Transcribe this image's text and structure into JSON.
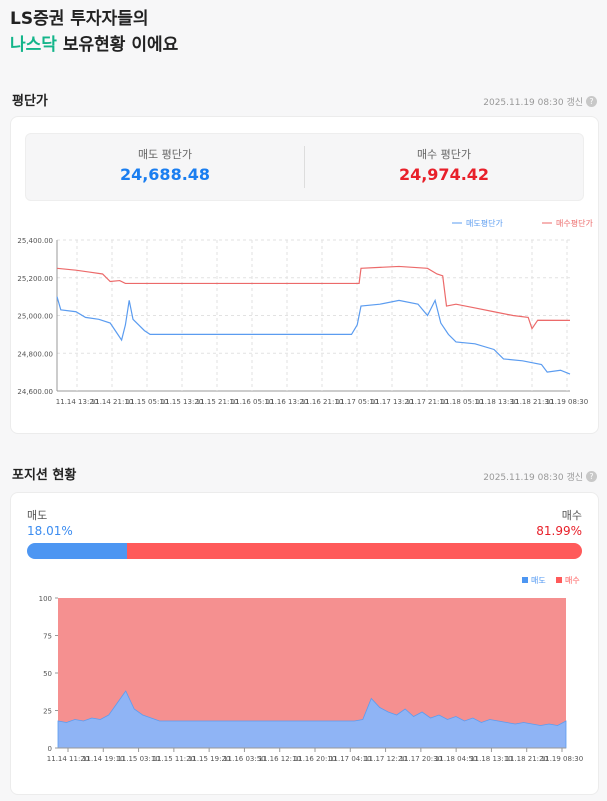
{
  "hero": {
    "line1": "LS증권 투자자들의",
    "line2_accent": "나스닥",
    "line2_rest": " 보유현황 이에요"
  },
  "avg_section": {
    "title": "평단가",
    "updated": "2025.11.19 08:30 갱신",
    "help_icon": "question-icon",
    "sell_label": "매도 평단가",
    "sell_value": "24,688.48",
    "buy_label": "매수 평단가",
    "buy_value": "24,974.42"
  },
  "position_section": {
    "title": "포지션 현황",
    "updated": "2025.11.19 08:30 갱신",
    "help_icon": "question-icon",
    "sell_label": "매도",
    "sell_pct": "18.01%",
    "buy_label": "매수",
    "buy_pct": "81.99%",
    "sell_fraction": 18.01
  },
  "colors": {
    "sell": "#3b8cf0",
    "buy": "#e8202a",
    "sell_area": "#8fb4f5",
    "buy_area": "#f59090",
    "accent": "#13b58a"
  },
  "chart_data": [
    {
      "type": "line",
      "legend": [
        "매도평단가",
        "매수평단가"
      ],
      "legend_position": "top-right",
      "grid": true,
      "ylim": [
        24600,
        25400
      ],
      "yticks": [
        "25,400.00",
        "25,200.00",
        "25,000.00",
        "24,800.00",
        "24,600.00"
      ],
      "xticks": [
        "11.14 13:20",
        "11.14 21:10",
        "11.15 05:10",
        "11.15 13:20",
        "11.15 21:10",
        "11.16 05:10",
        "11.16 13:20",
        "11.16 21:10",
        "11.17 05:10",
        "11.17 13:20",
        "11.17 21:10",
        "11.18 05:10",
        "11.18 13:30",
        "11.18 21:30",
        "11.19 08:30"
      ],
      "series": [
        {
          "name": "매도평단가",
          "color": "#5b9cf0",
          "points": [
            [
              0,
              25100
            ],
            [
              0.2,
              25030
            ],
            [
              1,
              25020
            ],
            [
              1.5,
              24990
            ],
            [
              2.2,
              24980
            ],
            [
              2.8,
              24960
            ],
            [
              3.2,
              24900
            ],
            [
              3.4,
              24870
            ],
            [
              3.6,
              24950
            ],
            [
              3.8,
              25080
            ],
            [
              4,
              24980
            ],
            [
              4.3,
              24950
            ],
            [
              4.6,
              24920
            ],
            [
              4.9,
              24900
            ],
            [
              15.5,
              24900
            ],
            [
              15.8,
              24950
            ],
            [
              16,
              25050
            ],
            [
              17,
              25060
            ],
            [
              18,
              25080
            ],
            [
              19,
              25060
            ],
            [
              19.5,
              25000
            ],
            [
              19.9,
              25080
            ],
            [
              20.2,
              24960
            ],
            [
              20.6,
              24900
            ],
            [
              21,
              24860
            ],
            [
              22,
              24850
            ],
            [
              23,
              24820
            ],
            [
              23.5,
              24770
            ],
            [
              24.5,
              24760
            ],
            [
              25.5,
              24740
            ],
            [
              25.8,
              24700
            ],
            [
              26.5,
              24710
            ],
            [
              27,
              24690
            ]
          ]
        },
        {
          "name": "매수평단가",
          "color": "#ec6a6a",
          "points": [
            [
              0,
              25250
            ],
            [
              1,
              25240
            ],
            [
              1.7,
              25230
            ],
            [
              2.4,
              25220
            ],
            [
              2.8,
              25180
            ],
            [
              3.3,
              25185
            ],
            [
              3.6,
              25170
            ],
            [
              15.9,
              25170
            ],
            [
              16,
              25250
            ],
            [
              18,
              25260
            ],
            [
              19.5,
              25250
            ],
            [
              20,
              25220
            ],
            [
              20.3,
              25210
            ],
            [
              20.5,
              25050
            ],
            [
              21,
              25060
            ],
            [
              22,
              25040
            ],
            [
              23,
              25020
            ],
            [
              24,
              25000
            ],
            [
              24.8,
              24990
            ],
            [
              25,
              24930
            ],
            [
              25.3,
              24975
            ],
            [
              27,
              24974
            ]
          ]
        }
      ]
    },
    {
      "type": "area",
      "stacked": true,
      "legend": [
        "매도",
        "매수"
      ],
      "legend_position": "top-right",
      "grid": false,
      "ylim": [
        0,
        100
      ],
      "yticks": [
        "100",
        "75",
        "50",
        "25",
        "0"
      ],
      "xticks": [
        "11.14 11:20",
        "11.14 19:10",
        "11.15 03:10",
        "11.15 11:20",
        "11.15 19:20",
        "11.16 03:50",
        "11.16 12:10",
        "11.16 20:10",
        "11.17 04:10",
        "11.17 12:20",
        "11.17 20:30",
        "11.18 04:50",
        "11.18 13:10",
        "11.18 21:20",
        "11.19 08:30"
      ],
      "series": [
        {
          "name": "매도",
          "values": [
            18,
            17,
            19,
            18,
            20,
            19,
            22,
            30,
            38,
            26,
            22,
            20,
            18,
            18,
            18,
            18,
            18,
            18,
            18,
            18,
            18,
            18,
            18,
            18,
            18,
            18,
            18,
            18,
            18,
            18,
            18,
            18,
            18,
            18,
            18,
            18,
            19,
            33,
            27,
            24,
            22,
            26,
            21,
            24,
            20,
            22,
            19,
            21,
            18,
            20,
            17,
            19,
            18,
            17,
            16,
            17,
            16,
            15,
            16,
            15,
            18
          ]
        },
        {
          "name": "매수",
          "values": "remainder to 100"
        }
      ]
    }
  ]
}
